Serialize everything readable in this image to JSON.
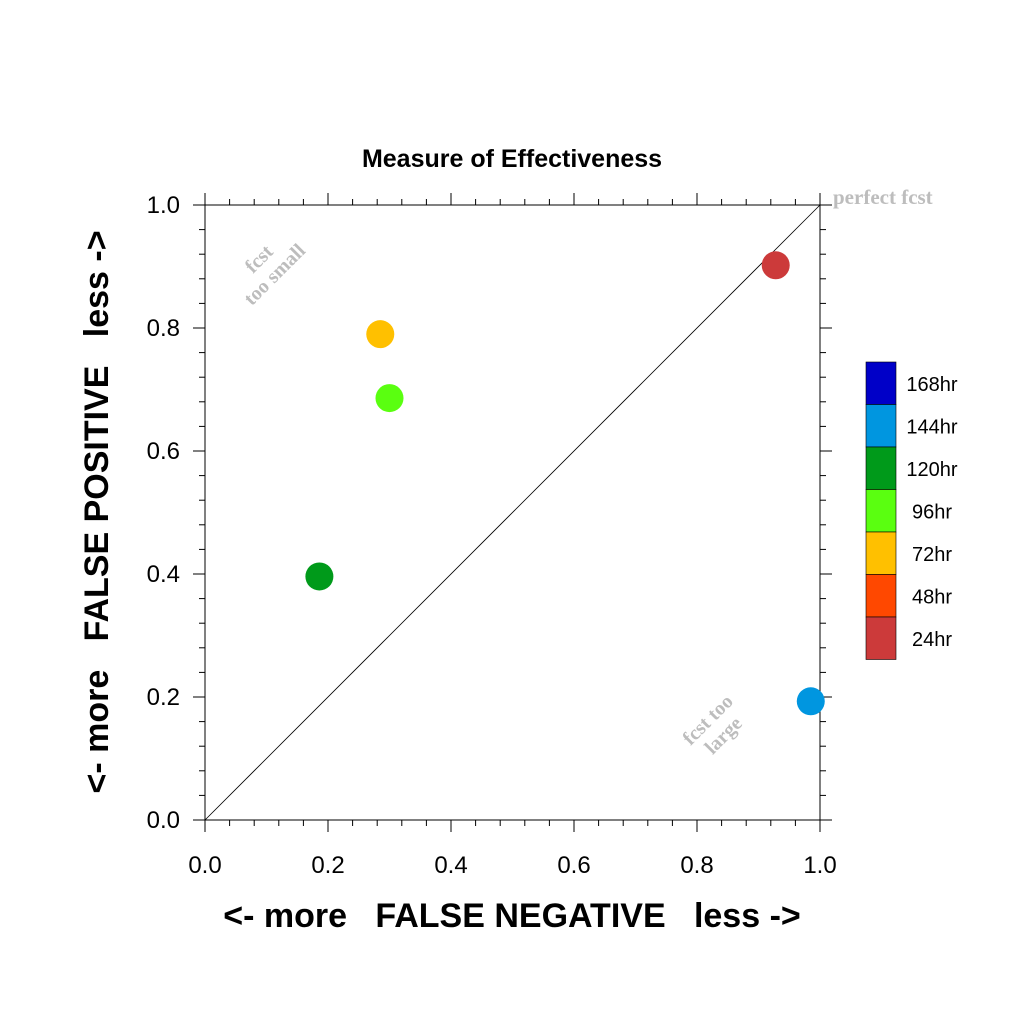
{
  "chart_data": {
    "type": "scatter",
    "title": "Measure of Effectiveness",
    "xlabel": "<- more   FALSE NEGATIVE   less ->",
    "ylabel": "<- more   FALSE POSITIVE   less ->",
    "xlim": [
      0,
      1
    ],
    "ylim": [
      0,
      1
    ],
    "xticks": [
      "0.0",
      "0.2",
      "0.4",
      "0.6",
      "0.8",
      "1.0"
    ],
    "yticks": [
      "0.0",
      "0.2",
      "0.4",
      "0.6",
      "0.8",
      "1.0"
    ],
    "grid": false,
    "diagonal_line": true,
    "points": [
      {
        "label": "24hr",
        "x": 0.928,
        "y": 0.902,
        "color": "#cc3a3a"
      },
      {
        "label": "72hr",
        "x": 0.285,
        "y": 0.79,
        "color": "#ffc000"
      },
      {
        "label": "96hr",
        "x": 0.3,
        "y": 0.686,
        "color": "#5aff10"
      },
      {
        "label": "120hr",
        "x": 0.186,
        "y": 0.396,
        "color": "#009a1a"
      },
      {
        "label": "144hr",
        "x": 0.985,
        "y": 0.193,
        "color": "#0096e0"
      }
    ],
    "legend": {
      "placement": "right",
      "entries": [
        {
          "label": "168hr",
          "color": "#0000c8"
        },
        {
          "label": "144hr",
          "color": "#0096e0"
        },
        {
          "label": "120hr",
          "color": "#009a1a"
        },
        {
          "label": "96hr",
          "color": "#5aff10"
        },
        {
          "label": "72hr",
          "color": "#ffc000"
        },
        {
          "label": "48hr",
          "color": "#ff4800"
        },
        {
          "label": "24hr",
          "color": "#cc3a3a"
        }
      ]
    },
    "annotations": {
      "perfect": "perfect fcst",
      "too_small_line1": "fcst",
      "too_small_line2": "too small",
      "too_large_line1": "fcst too",
      "too_large_line2": "large"
    }
  }
}
